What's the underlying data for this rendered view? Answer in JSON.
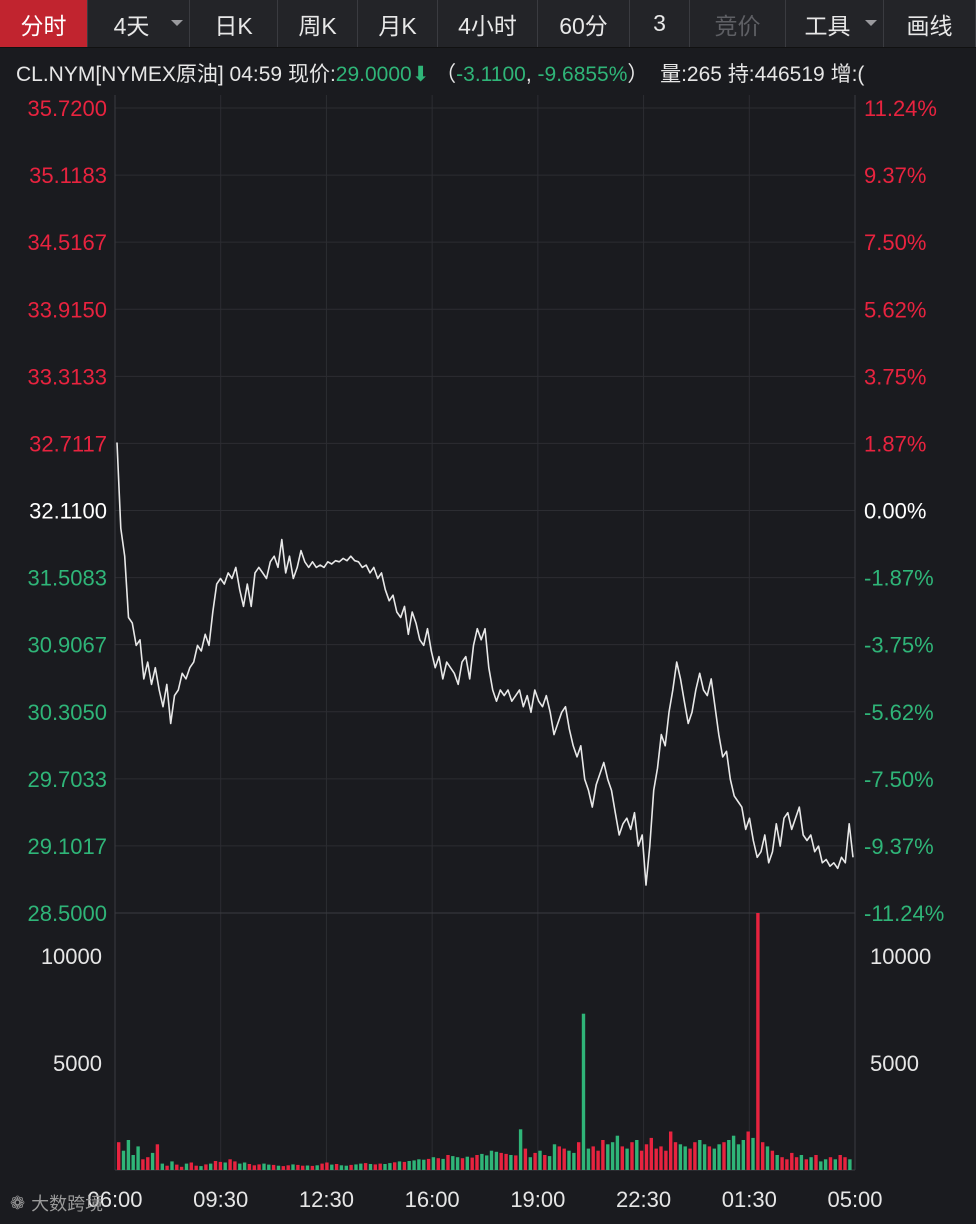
{
  "toolbar": {
    "tabs": [
      {
        "label": "分时",
        "active": true
      },
      {
        "label": "4天",
        "dropdown": true
      },
      {
        "label": "日K"
      },
      {
        "label": "周K"
      },
      {
        "label": "月K"
      },
      {
        "label": "4小时"
      },
      {
        "label": "60分"
      },
      {
        "label": "3"
      },
      {
        "label": "竞价",
        "disabled": true
      },
      {
        "label": "工具",
        "dropdown": true
      },
      {
        "label": "画线"
      }
    ]
  },
  "quote": {
    "symbol": "CL.NYM[NYMEX原油]",
    "time": "04:59",
    "price_label": "现价:",
    "price": "29.0000",
    "change_open": "（",
    "change": "-3.1100",
    "sep": ", ",
    "change_pct": "-9.6855%",
    "change_close": "）",
    "volume": "量:265",
    "open_interest": "持:446519",
    "increase": "增:("
  },
  "colors": {
    "up": "#e8233f",
    "down": "#2fb578",
    "neutral": "#ffffff",
    "line": "#e8e8e8"
  },
  "watermark": "大数跨境",
  "chart_data": {
    "type": "line",
    "prev_close": 32.11,
    "ylim": [
      28.5,
      35.72
    ],
    "y_ticks_left": [
      "35.7200",
      "35.1183",
      "34.5167",
      "33.9150",
      "33.3133",
      "32.7117",
      "32.1100",
      "31.5083",
      "30.9067",
      "30.3050",
      "29.7033",
      "29.1017",
      "28.5000"
    ],
    "y_ticks_right": [
      "11.24%",
      "9.37%",
      "7.50%",
      "5.62%",
      "3.75%",
      "1.87%",
      "0.00%",
      "-1.87%",
      "-3.75%",
      "-5.62%",
      "-7.50%",
      "-9.37%",
      "-11.24%"
    ],
    "x_ticks": [
      "06:00",
      "09:30",
      "12:30",
      "16:00",
      "19:00",
      "22:30",
      "01:30",
      "05:00"
    ],
    "series": [
      {
        "values": [
          32.72,
          31.95,
          31.7,
          31.15,
          31.1,
          30.9,
          30.95,
          30.6,
          30.75,
          30.55,
          30.7,
          30.5,
          30.35,
          30.55,
          30.2,
          30.45,
          30.5,
          30.65,
          30.6,
          30.7,
          30.75,
          30.9,
          30.85,
          31.0,
          30.9,
          31.2,
          31.45,
          31.5,
          31.45,
          31.55,
          31.5,
          31.6,
          31.4,
          31.25,
          31.45,
          31.25,
          31.55,
          31.6,
          31.55,
          31.5,
          31.65,
          31.7,
          31.6,
          31.85,
          31.55,
          31.7,
          31.5,
          31.6,
          31.75,
          31.65,
          31.6,
          31.65,
          31.6,
          31.62,
          31.6,
          31.65,
          31.63,
          31.66,
          31.65,
          31.68,
          31.66,
          31.7,
          31.66,
          31.65,
          31.6,
          31.62,
          31.55,
          31.6,
          31.5,
          31.55,
          31.4,
          31.3,
          31.35,
          31.2,
          31.15,
          31.25,
          31.0,
          31.2,
          31.1,
          30.95,
          30.9,
          31.05,
          30.85,
          30.7,
          30.8,
          30.6,
          30.75,
          30.7,
          30.65,
          30.55,
          30.75,
          30.8,
          30.6,
          30.9,
          31.05,
          30.95,
          31.05,
          30.7,
          30.5,
          30.4,
          30.5,
          30.45,
          30.5,
          30.4,
          30.45,
          30.5,
          30.35,
          30.45,
          30.3,
          30.5,
          30.4,
          30.35,
          30.45,
          30.3,
          30.1,
          30.2,
          30.3,
          30.35,
          30.15,
          30.0,
          29.9,
          30.0,
          29.7,
          29.6,
          29.45,
          29.65,
          29.75,
          29.85,
          29.7,
          29.6,
          29.4,
          29.2,
          29.3,
          29.35,
          29.25,
          29.4,
          29.1,
          29.2,
          28.75,
          29.1,
          29.6,
          29.8,
          30.1,
          30.0,
          30.3,
          30.5,
          30.75,
          30.6,
          30.4,
          30.2,
          30.3,
          30.5,
          30.65,
          30.5,
          30.45,
          30.6,
          30.35,
          30.1,
          29.9,
          29.95,
          29.7,
          29.55,
          29.5,
          29.45,
          29.25,
          29.35,
          29.15,
          29.0,
          29.05,
          29.2,
          28.95,
          29.05,
          29.3,
          29.1,
          29.35,
          29.4,
          29.25,
          29.35,
          29.45,
          29.2,
          29.15,
          29.2,
          29.05,
          29.1,
          28.95,
          28.98,
          28.92,
          28.95,
          28.9,
          29.0,
          28.95,
          29.3,
          29.0
        ]
      }
    ],
    "volume": {
      "ylim": [
        0,
        12000
      ],
      "y_ticks": [
        "10000",
        "5000"
      ],
      "bars": [
        1300,
        900,
        1400,
        700,
        1100,
        500,
        600,
        800,
        1200,
        300,
        200,
        400,
        250,
        150,
        300,
        350,
        200,
        180,
        260,
        300,
        420,
        380,
        350,
        500,
        400,
        300,
        350,
        280,
        220,
        260,
        300,
        250,
        240,
        200,
        180,
        220,
        260,
        240,
        200,
        210,
        190,
        220,
        300,
        350,
        250,
        280,
        220,
        200,
        240,
        260,
        300,
        320,
        280,
        260,
        300,
        280,
        320,
        360,
        400,
        380,
        420,
        450,
        500,
        480,
        520,
        600,
        550,
        520,
        700,
        650,
        600,
        550,
        620,
        580,
        700,
        750,
        680,
        900,
        850,
        800,
        750,
        700,
        680,
        1900,
        1000,
        600,
        800,
        900,
        700,
        650,
        1200,
        1100,
        1000,
        900,
        800,
        1300,
        7300,
        1000,
        1100,
        900,
        1400,
        1200,
        1300,
        1600,
        1100,
        1000,
        1300,
        1400,
        900,
        1200,
        1500,
        1000,
        1100,
        900,
        1800,
        1300,
        1200,
        1100,
        1000,
        1300,
        1400,
        1200,
        1100,
        1000,
        1200,
        1300,
        1400,
        1600,
        1200,
        1400,
        1800,
        1500,
        12000,
        1300,
        1100,
        900,
        700,
        600,
        500,
        800,
        600,
        700,
        500,
        600,
        700,
        400,
        500,
        600,
        500,
        700,
        600,
        500
      ]
    }
  }
}
